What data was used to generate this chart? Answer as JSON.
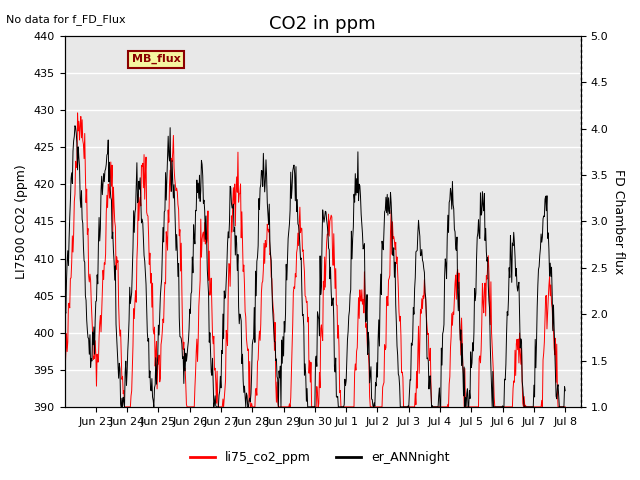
{
  "title": "CO2 in ppm",
  "top_left_text": "No data for f_FD_Flux",
  "ylabel_left": "LI7500 CO2 (ppm)",
  "ylabel_right": "FD Chamber flux",
  "ylim_left": [
    390,
    440
  ],
  "ylim_right": [
    1.0,
    5.0
  ],
  "yticks_left": [
    390,
    395,
    400,
    405,
    410,
    415,
    420,
    425,
    430,
    435,
    440
  ],
  "yticks_right": [
    1.0,
    1.5,
    2.0,
    2.5,
    3.0,
    3.5,
    4.0,
    4.5,
    5.0
  ],
  "line1_color": "red",
  "line2_color": "black",
  "line1_label": "li75_co2_ppm",
  "line2_label": "er_ANNnight",
  "background_color": "#e8e8e8",
  "legend_box_color": "#f5f5a0",
  "legend_box_text": "MB_flux",
  "grid_color": "white",
  "title_fontsize": 13,
  "axis_label_fontsize": 9,
  "tick_fontsize": 8,
  "xlabels": [
    "Jun 23",
    "Jun 24",
    "Jun 25",
    "Jun 26",
    "Jun 27",
    "Jun 28",
    "Jun 29",
    "Jun 30",
    "Jul 1",
    "Jul 2",
    "Jul 3",
    "Jul 4",
    "Jul 5",
    "Jul 6",
    "Jul 7",
    "Jul 8"
  ]
}
